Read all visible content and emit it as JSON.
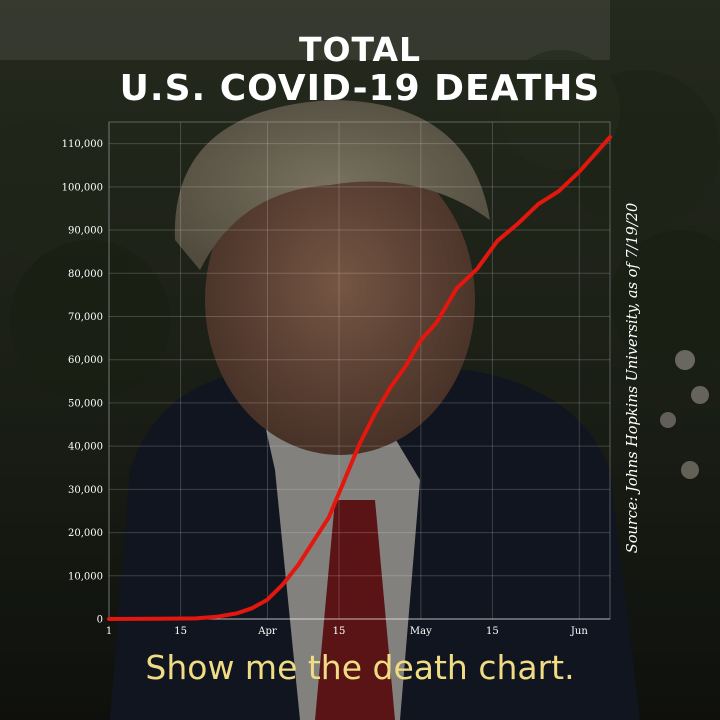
{
  "title_line1": "TOTAL",
  "title_line2": "U.S. COVID-19 DEATHS",
  "source": "Source: Johns Hopkins University, as of 7/19/20",
  "caption": "Show me the death chart.",
  "colors": {
    "line": "#e3170d",
    "caption": "#f0dc82",
    "text": "#ffffff"
  },
  "chart_data": {
    "type": "line",
    "title": "TOTAL U.S. COVID-19 DEATHS",
    "xlabel": "",
    "ylabel": "",
    "x_tick_labels": [
      "1",
      "15",
      "Apr",
      "15",
      "May",
      "15",
      "Jun"
    ],
    "x_tick_dates": [
      "2020-03-01",
      "2020-03-15",
      "2020-04-01",
      "2020-04-15",
      "2020-05-01",
      "2020-05-15",
      "2020-06-01"
    ],
    "xlim": [
      "2020-03-01",
      "2020-06-07"
    ],
    "ylim": [
      0,
      115000
    ],
    "y_ticks": [
      0,
      10000,
      20000,
      30000,
      40000,
      50000,
      60000,
      70000,
      80000,
      90000,
      100000,
      110000
    ],
    "y_tick_labels": [
      "0",
      "10,000",
      "20,000",
      "30,000",
      "40,000",
      "50,000",
      "60,000",
      "70,000",
      "80,000",
      "90,000",
      "100,000",
      "110,000"
    ],
    "grid": true,
    "series": [
      {
        "x": [
          "2020-03-01",
          "2020-03-10",
          "2020-03-18",
          "2020-03-22",
          "2020-03-26",
          "2020-03-29",
          "2020-04-01",
          "2020-04-04",
          "2020-04-07",
          "2020-04-10",
          "2020-04-13",
          "2020-04-16",
          "2020-04-19",
          "2020-04-22",
          "2020-04-25",
          "2020-04-28",
          "2020-05-01",
          "2020-05-04",
          "2020-05-08",
          "2020-05-12",
          "2020-05-16",
          "2020-05-20",
          "2020-05-24",
          "2020-05-28",
          "2020-06-01",
          "2020-06-04",
          "2020-06-07"
        ],
        "y": [
          0,
          50,
          150,
          500,
          1300,
          2500,
          4500,
          8000,
          12500,
          18000,
          23500,
          32000,
          40500,
          47500,
          53500,
          58500,
          64500,
          68500,
          76500,
          81000,
          87500,
          91500,
          96000,
          99000,
          103500,
          107500,
          111500
        ]
      }
    ]
  }
}
